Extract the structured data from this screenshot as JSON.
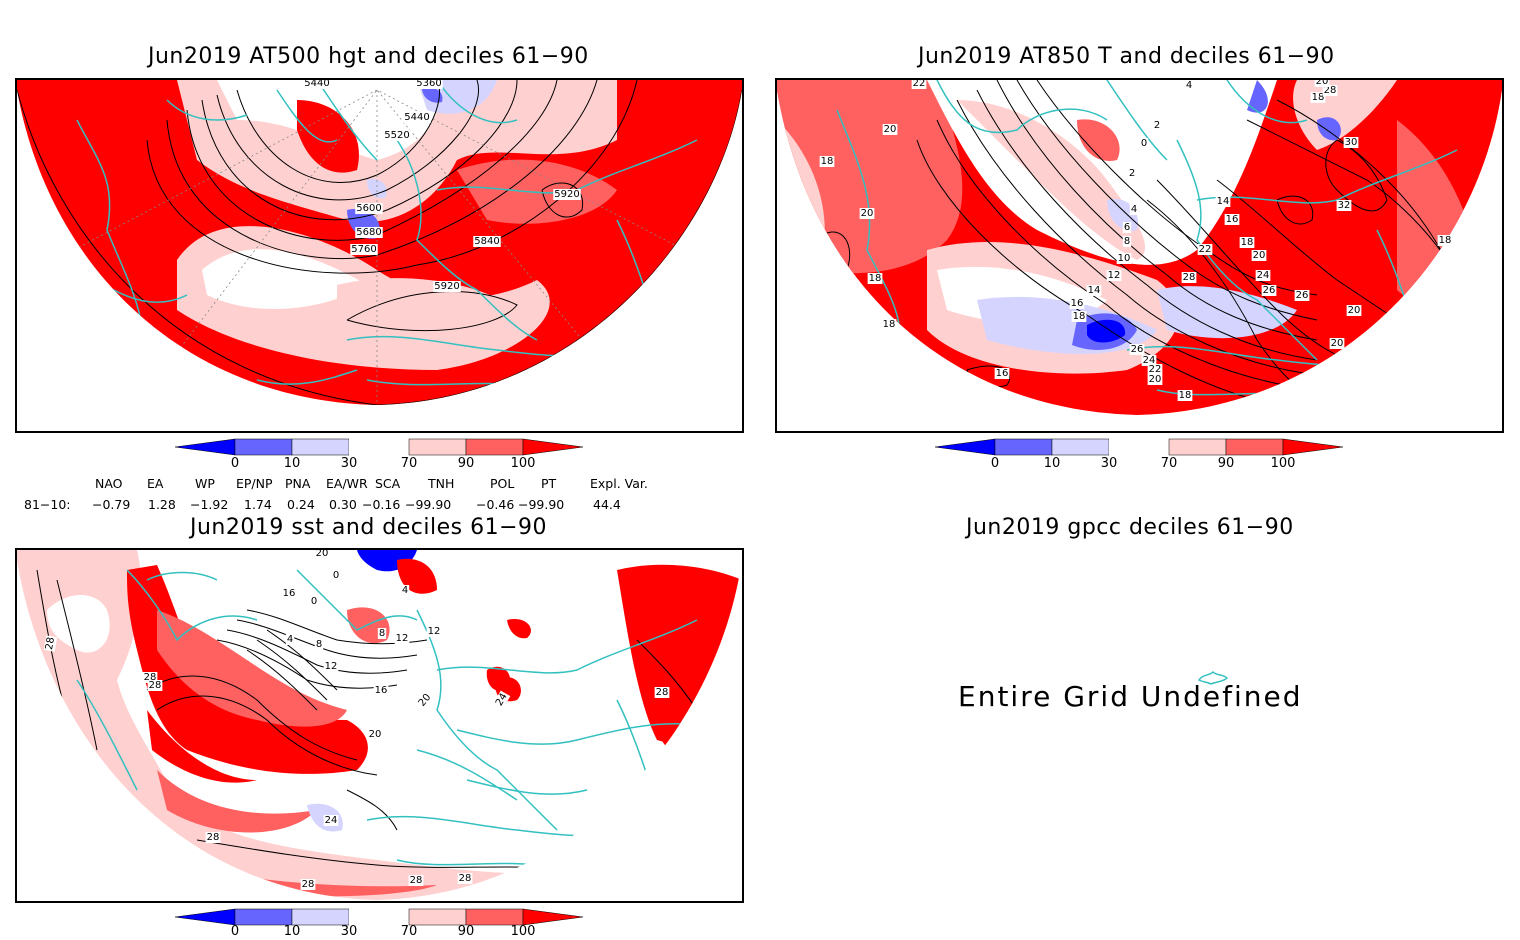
{
  "panels": {
    "at500": {
      "title": "Jun2019 AT500 hgt and deciles 61−90",
      "contour_labels": [
        "5440",
        "5360",
        "5440",
        "5520",
        "5600",
        "5680",
        "5760",
        "5840",
        "5920",
        "5920"
      ]
    },
    "at850": {
      "title": "Jun2019 AT850 T and deciles 61−90",
      "contour_labels": [
        "22",
        "20",
        "18",
        "20",
        "18",
        "18",
        "4",
        "2",
        "0",
        "2",
        "4",
        "6",
        "8",
        "10",
        "12",
        "14",
        "16",
        "18",
        "16",
        "26",
        "24",
        "22",
        "20",
        "18",
        "14",
        "16",
        "22",
        "18",
        "20",
        "24",
        "26",
        "26",
        "20",
        "20",
        "28",
        "30",
        "32",
        "18",
        "28",
        "20",
        "18"
      ]
    },
    "sst": {
      "title": "Jun2019 sst and deciles 61−90",
      "contour_labels": [
        "28",
        "28",
        "28",
        "4",
        "8",
        "12",
        "16",
        "20",
        "20",
        "24",
        "28",
        "28",
        "28",
        "28",
        "24",
        "12",
        "8",
        "4",
        "0",
        "0",
        "16",
        "12",
        "28",
        "20"
      ]
    },
    "gpcc": {
      "title": "Jun2019 gpcc deciles 61−90",
      "message": "Entire Grid Undefined"
    }
  },
  "colorbar": {
    "ticks": [
      "0",
      "10",
      "30",
      "70",
      "90",
      "100"
    ],
    "colors": [
      "#0000ff",
      "#6666ff",
      "#d4d4ff",
      "#ffffff",
      "#ffd0d0",
      "#ff6060",
      "#ff0000"
    ]
  },
  "indices": {
    "headers": [
      "NAO",
      "EA",
      "WP",
      "EP/NP",
      "PNA",
      "EA/WR",
      "SCA",
      "TNH",
      "POL",
      "PT",
      "Expl. Var."
    ],
    "row_label": "81−10:",
    "values": [
      "−0.79",
      "1.28",
      "−1.92",
      "1.74",
      "0.24",
      "0.30",
      "−0.16",
      "−99.90",
      "−0.46",
      "−99.90",
      "44.4"
    ]
  },
  "colors": {
    "coast": "#33c0c0",
    "strong_above": "#ff0000",
    "above": "#ff6060",
    "slightly_above": "#ffd0d0",
    "slightly_below": "#d4d4ff",
    "below": "#6666ff",
    "strong_below": "#0000ff"
  }
}
